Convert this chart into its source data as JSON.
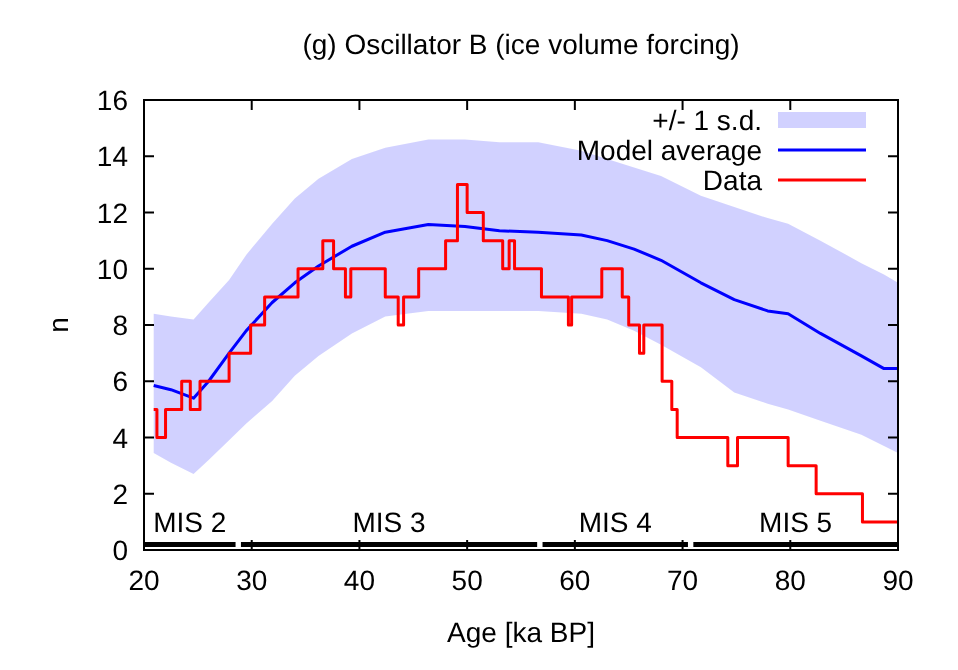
{
  "chart_data": {
    "type": "line",
    "title": "(g) Oscillator B (ice volume forcing)",
    "xlabel": "Age [ka BP]",
    "ylabel": "n",
    "xlim": [
      20,
      90
    ],
    "xticks": [
      20,
      30,
      40,
      50,
      60,
      70,
      80,
      90
    ],
    "ylim": [
      0,
      16
    ],
    "yticks": [
      0,
      2,
      4,
      6,
      8,
      10,
      12,
      14,
      16
    ],
    "legend": "top right",
    "annotations": [
      "+/- 1 s.d."
    ],
    "series": [
      {
        "name": "Model average",
        "color": "#0000ff",
        "x": [
          20.9,
          22.5,
          24.6,
          26,
          27.9,
          29.5,
          31.9,
          34,
          36.2,
          39.3,
          42.4,
          46.4,
          49.8,
          53,
          56.6,
          60.6,
          63,
          65.5,
          68,
          71.7,
          74.8,
          77.9,
          79.8,
          82.8,
          86.6,
          88.7,
          90
        ],
        "values": [
          5.85,
          5.7,
          5.4,
          6.0,
          7.0,
          7.8,
          8.8,
          9.5,
          10.1,
          10.8,
          11.3,
          11.57,
          11.5,
          11.35,
          11.3,
          11.2,
          11.0,
          10.7,
          10.3,
          9.5,
          8.9,
          8.5,
          8.4,
          7.7,
          6.9,
          6.45,
          6.45
        ],
        "upper": [
          8.4,
          8.3,
          8.2,
          8.8,
          9.6,
          10.5,
          11.6,
          12.5,
          13.2,
          13.9,
          14.3,
          14.6,
          14.6,
          14.5,
          14.5,
          14.2,
          13.9,
          13.6,
          13.3,
          12.6,
          12.2,
          11.8,
          11.6,
          11.0,
          10.2,
          9.8,
          9.5
        ],
        "lower": [
          3.45,
          3.1,
          2.7,
          3.2,
          3.9,
          4.5,
          5.3,
          6.2,
          6.9,
          7.7,
          8.3,
          8.5,
          8.5,
          8.5,
          8.5,
          8.4,
          8.2,
          7.8,
          7.3,
          6.5,
          5.6,
          5.2,
          5.0,
          4.6,
          4.1,
          3.7,
          3.45
        ]
      },
      {
        "name": "Data",
        "type": "step",
        "color": "#ff0000",
        "x": [
          20.9,
          21.2,
          22,
          23.5,
          24.3,
          25.2,
          27.9,
          29.9,
          31.2,
          34.3,
          36.6,
          37.6,
          38.7,
          39.2,
          42.4,
          43.6,
          44.1,
          45.5,
          48,
          49.1,
          50,
          51.5,
          53.3,
          53.9,
          54.4,
          56.9,
          59.4,
          59.7,
          62.5,
          64.4,
          65,
          66,
          66.4,
          68.1,
          69,
          69.5,
          74.2,
          75.1,
          79.8,
          82.4,
          86.7,
          90
        ],
        "values": [
          5,
          4,
          5,
          6,
          5,
          6,
          7,
          8,
          9,
          10,
          11,
          10,
          9,
          10,
          9,
          8,
          9,
          10,
          11,
          13,
          12,
          11,
          10,
          11,
          10,
          9,
          8,
          9,
          10,
          9,
          8,
          7,
          8,
          6,
          5,
          4,
          3,
          4,
          3,
          2,
          1,
          1
        ]
      },
      {
        "name": "MIS 2",
        "type": "line",
        "color": "#000000",
        "x": [
          20,
          28.5
        ],
        "values": [
          0.2,
          0.2
        ]
      },
      {
        "name": "MIS 3",
        "type": "line",
        "color": "#000000",
        "x": [
          29,
          56.5
        ],
        "values": [
          0.2,
          0.2
        ]
      },
      {
        "name": "MIS 4",
        "type": "line",
        "color": "#000000",
        "x": [
          57,
          70.5
        ],
        "values": [
          0.2,
          0.2
        ]
      },
      {
        "name": "MIS 5",
        "type": "line",
        "color": "#000000",
        "x": [
          71,
          90
        ],
        "values": [
          0.2,
          0.2
        ]
      }
    ]
  }
}
